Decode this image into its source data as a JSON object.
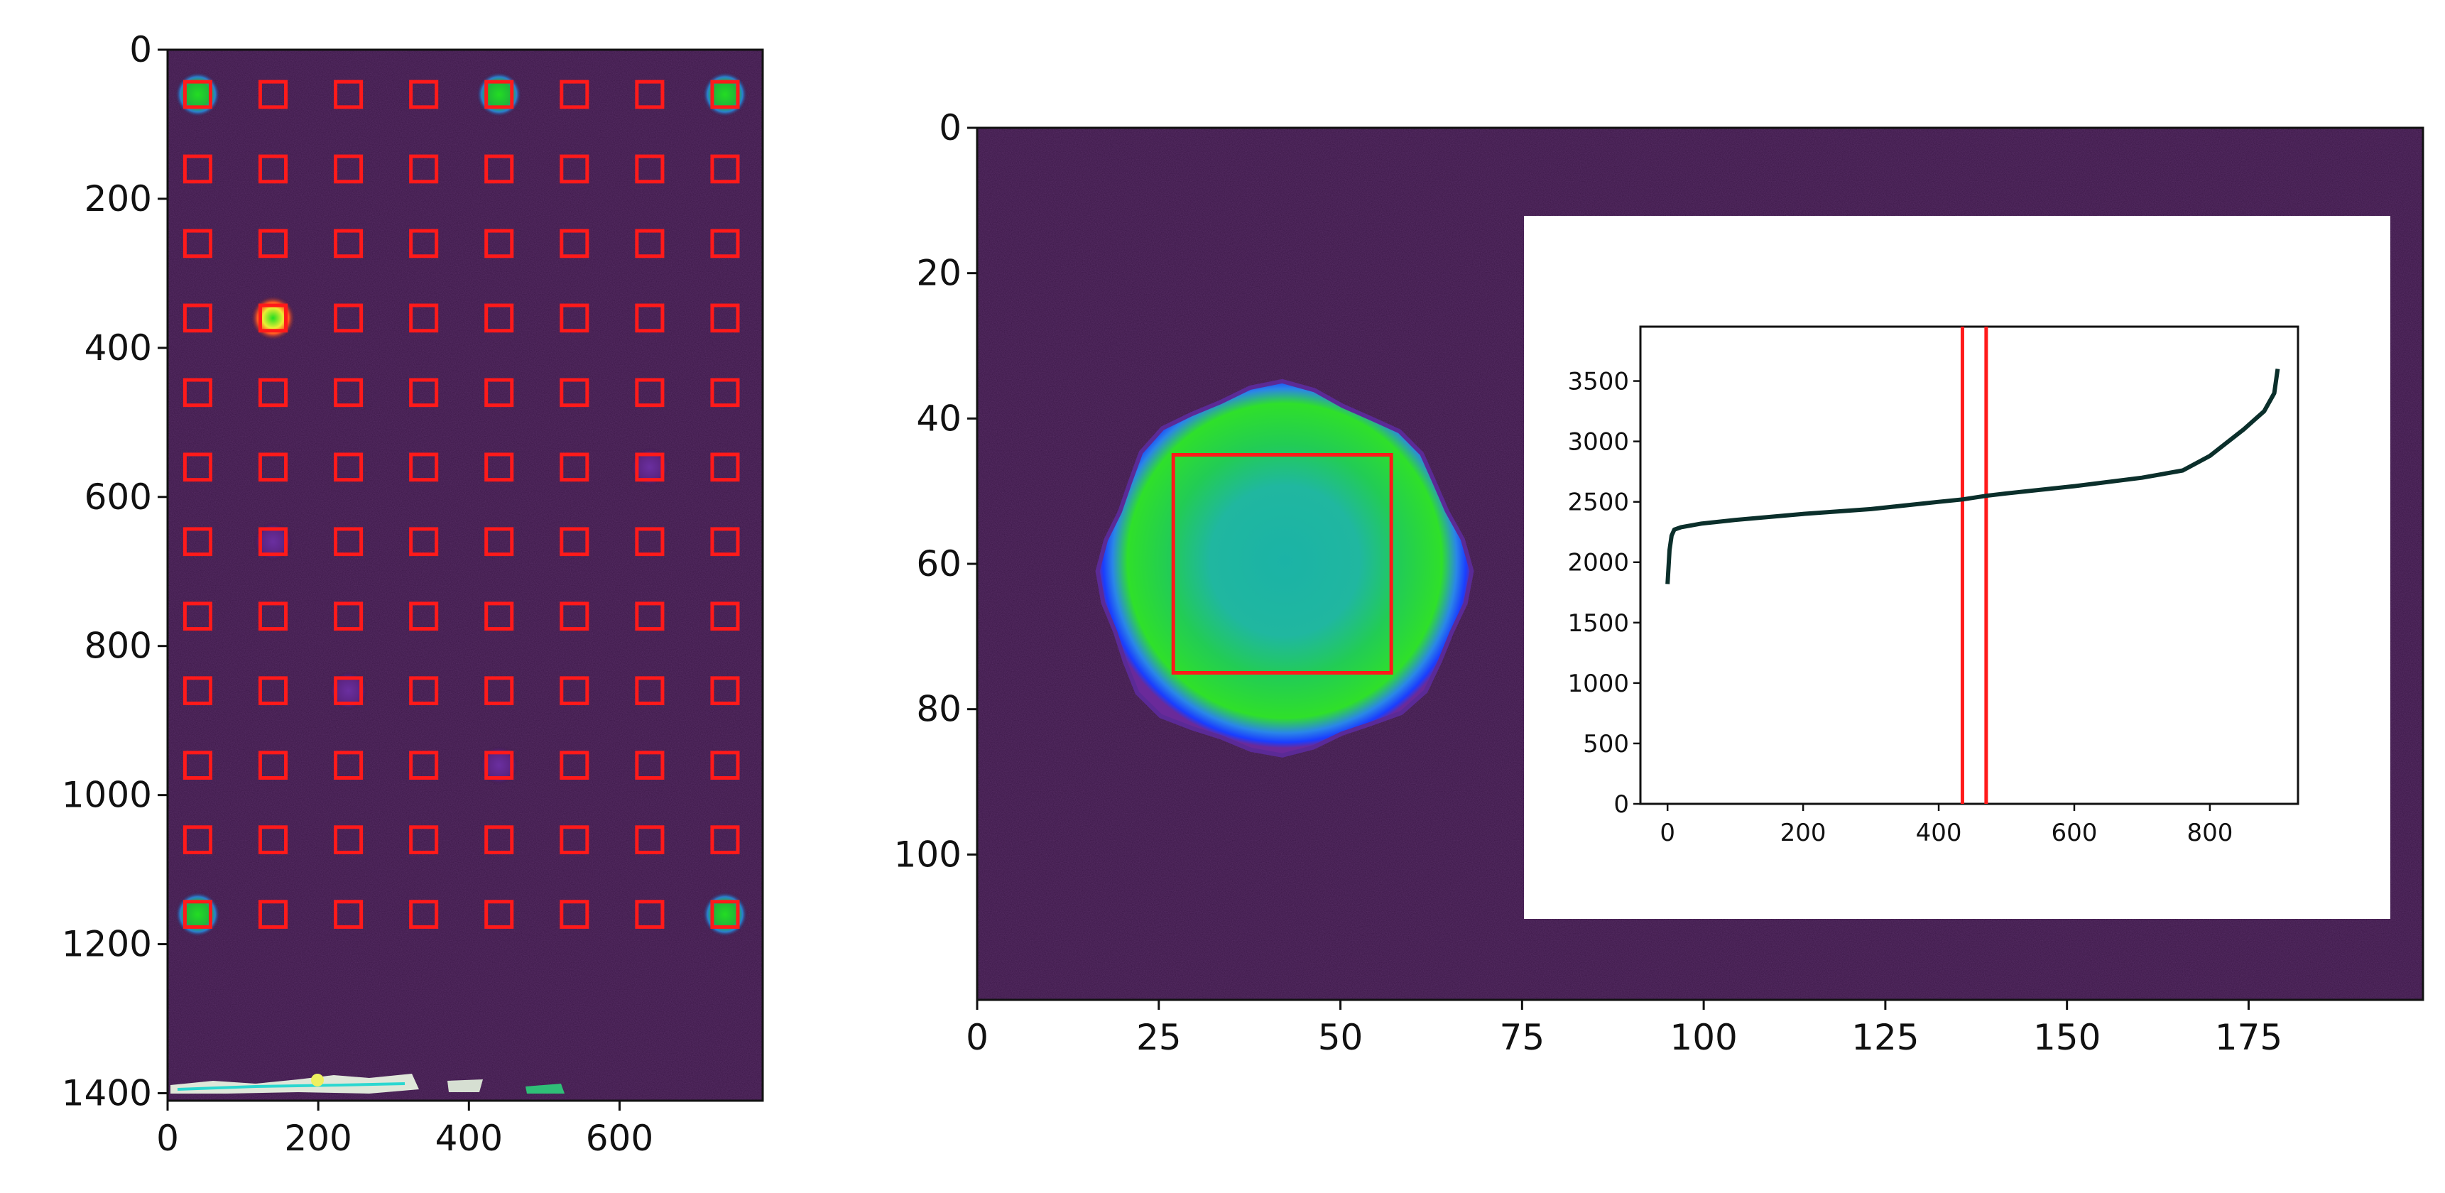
{
  "colors": {
    "background_dark": "#3a1646",
    "roi_box": "#ff1a1a",
    "spot_green": "#22dd22",
    "spot_cyan": "#22b5b0",
    "spot_blue": "#2050ff",
    "curve": "#0b2f2b",
    "threshold_line": "#ff1a1a"
  },
  "chart_data": [
    {
      "type": "heatmap",
      "description": "left panel",
      "xticks": [
        "0",
        "200",
        "400",
        "600"
      ],
      "yticks": [
        "0",
        "200",
        "400",
        "600",
        "800",
        "1000",
        "1200",
        "1400"
      ],
      "xlim": [
        0,
        790
      ],
      "ylim": [
        1410,
        0
      ],
      "grid": {
        "columns_x": [
          40,
          140,
          240,
          340,
          440,
          540,
          640,
          740
        ],
        "rows_y": [
          60,
          160,
          260,
          360,
          460,
          560,
          660,
          760,
          860,
          960,
          1060,
          1160
        ],
        "roi_size": 34
      },
      "bright_spots": [
        {
          "x": 40,
          "y": 60,
          "kind": "bright"
        },
        {
          "x": 440,
          "y": 60,
          "kind": "bright"
        },
        {
          "x": 740,
          "y": 60,
          "kind": "bright"
        },
        {
          "x": 140,
          "y": 360,
          "kind": "hot"
        },
        {
          "x": 40,
          "y": 1160,
          "kind": "bright"
        },
        {
          "x": 740,
          "y": 1160,
          "kind": "bright"
        },
        {
          "x": 140,
          "y": 660,
          "kind": "faint"
        },
        {
          "x": 640,
          "y": 560,
          "kind": "faint"
        },
        {
          "x": 440,
          "y": 960,
          "kind": "faint"
        },
        {
          "x": 240,
          "y": 860,
          "kind": "faint"
        }
      ]
    },
    {
      "type": "heatmap",
      "description": "right panel zoom",
      "xticks": [
        "0",
        "25",
        "50",
        "75",
        "100",
        "125",
        "150",
        "175"
      ],
      "yticks": [
        "0",
        "20",
        "40",
        "60",
        "80",
        "100"
      ],
      "xlim": [
        0,
        199
      ],
      "ylim": [
        120,
        0
      ],
      "spot": {
        "cx": 42,
        "cy": 61,
        "r": 25
      },
      "roi": {
        "x0": 27,
        "y0": 45,
        "x1": 57,
        "y1": 75
      }
    },
    {
      "type": "line",
      "description": "inset",
      "xticks": [
        "0",
        "200",
        "400",
        "600",
        "800"
      ],
      "yticks": [
        "0",
        "500",
        "1000",
        "1500",
        "2000",
        "2500",
        "3000",
        "3500"
      ],
      "xlim": [
        -40,
        930
      ],
      "ylim": [
        0,
        3950
      ],
      "series": [
        {
          "x": [
            0,
            3,
            6,
            10,
            20,
            50,
            100,
            200,
            300,
            400,
            435,
            470,
            500,
            600,
            700,
            760,
            800,
            850,
            880,
            895,
            900
          ],
          "values": [
            1820,
            2100,
            2220,
            2270,
            2290,
            2320,
            2350,
            2400,
            2440,
            2500,
            2520,
            2550,
            2570,
            2630,
            2700,
            2760,
            2880,
            3100,
            3250,
            3400,
            3600
          ]
        }
      ],
      "vlines": [
        435,
        470
      ]
    }
  ]
}
